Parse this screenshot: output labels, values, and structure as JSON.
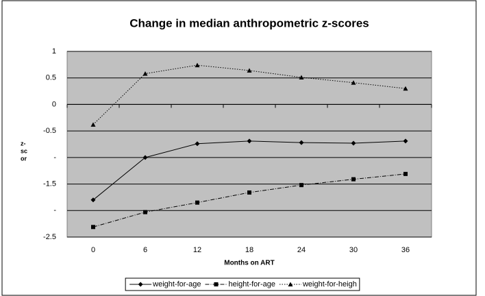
{
  "chart_data": {
    "type": "line",
    "title": "Change in median anthropometric z-scores",
    "xlabel": "Months on ART",
    "ylabel_lines": [
      "z-",
      "sc",
      "or"
    ],
    "categories": [
      "0",
      "6",
      "12",
      "18",
      "24",
      "30",
      "36"
    ],
    "series": [
      {
        "name": "weight-for-age",
        "color": "#000000",
        "marker": "diamond",
        "line_style": "solid",
        "values": [
          -1.8,
          -1.0,
          -0.74,
          -0.69,
          -0.72,
          -0.73,
          -0.69
        ]
      },
      {
        "name": "height-for-age",
        "color": "#000000",
        "marker": "square",
        "line_style": "dashdot",
        "values": [
          -2.31,
          -2.03,
          -1.85,
          -1.66,
          -1.52,
          -1.41,
          -1.31
        ]
      },
      {
        "name": "weight-for-heigh",
        "color": "#000000",
        "marker": "triangle",
        "line_style": "dotted",
        "values": [
          -0.38,
          0.58,
          0.74,
          0.64,
          0.51,
          0.41,
          0.3
        ]
      }
    ],
    "ylim": [
      -2.5,
      1
    ],
    "yticks": [
      1,
      0.5,
      0,
      -0.5,
      {
        "value": -1,
        "label": "-"
      },
      -1.5,
      {
        "value": -2,
        "label": "-"
      },
      -2.5
    ],
    "grid": true,
    "plot_background": "#c0c0c0",
    "legend": "bottom"
  }
}
